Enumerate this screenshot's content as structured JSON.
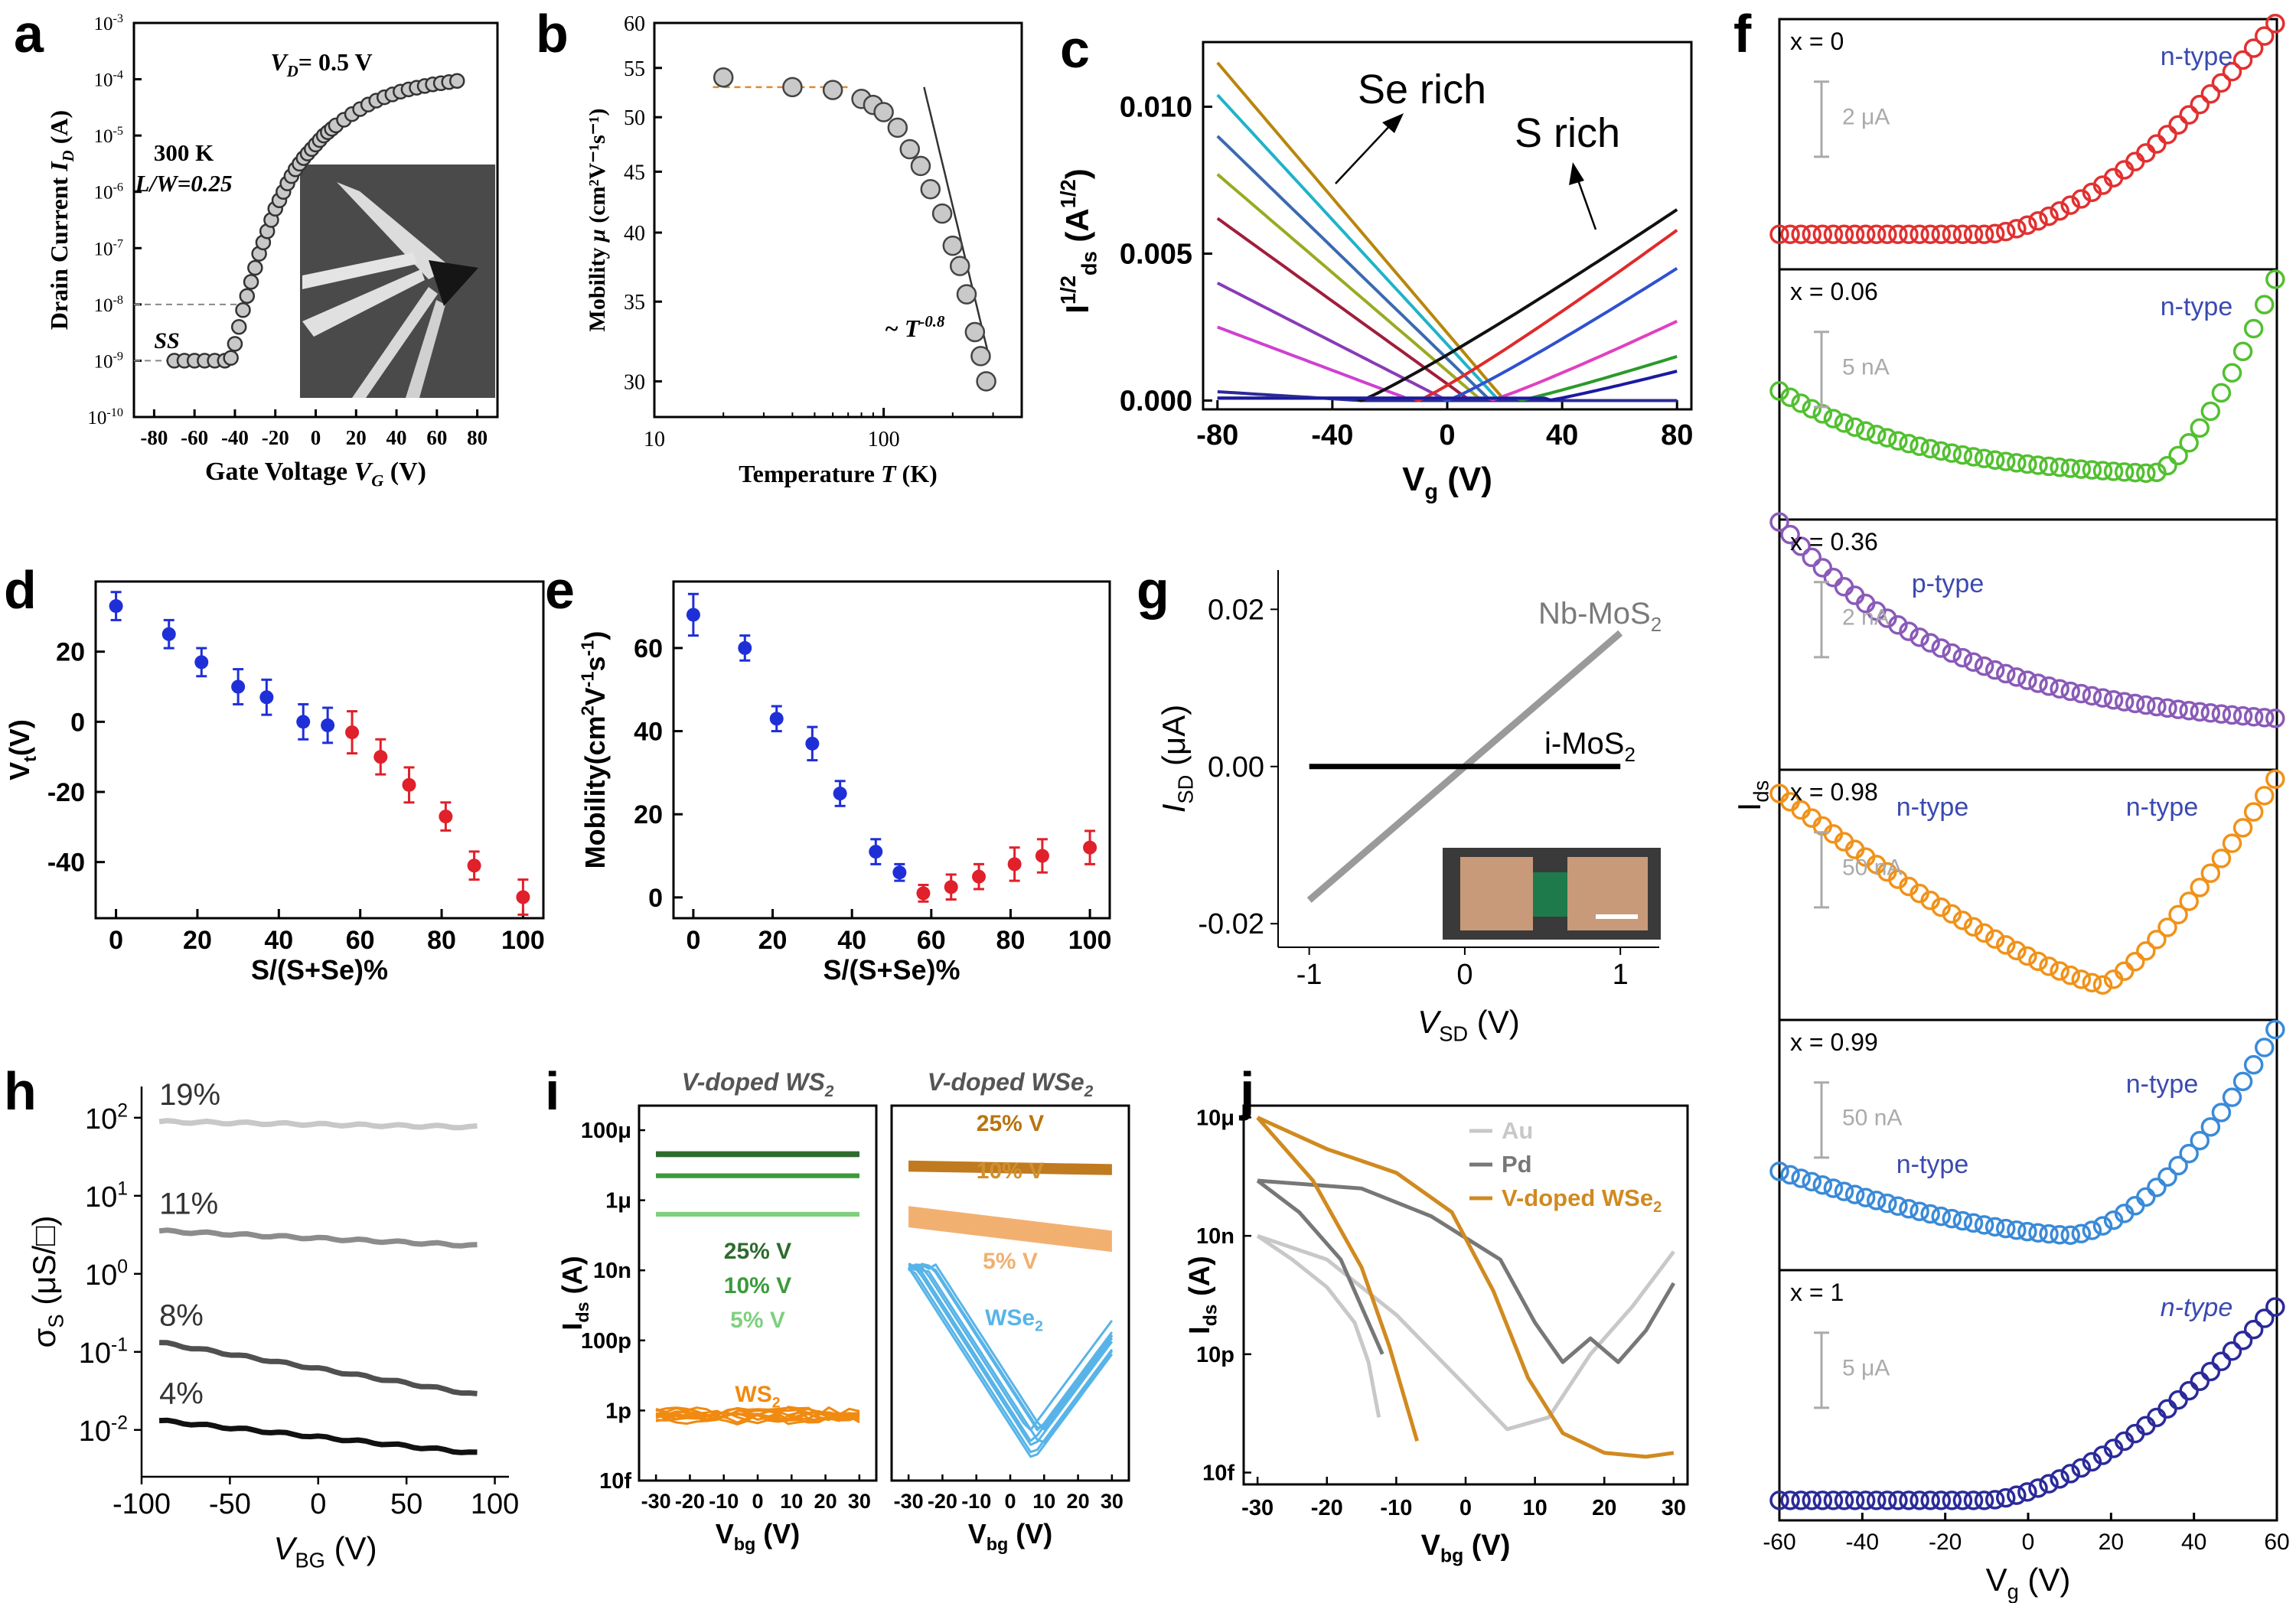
{
  "panel_letters": {
    "a": "a",
    "b": "b",
    "c": "c",
    "d": "d",
    "e": "e",
    "f": "f",
    "g": "g",
    "h": "h",
    "i": "i",
    "j": "j"
  },
  "colors": {
    "blue": "#1f2fd8",
    "red": "#e0202a",
    "gray": "#8a8a8a",
    "dark": "#111111",
    "orange": "#e58a1f",
    "green": "#2e8b3a",
    "lightblue": "#58b4e8"
  },
  "chart_data": [
    {
      "id": "a",
      "type": "scatter",
      "log_y": true,
      "xlabel_pre": "Gate Voltage ",
      "xlabel_var": "V",
      "xlabel_sub": "G",
      "xlabel_post": " (V)",
      "ylabel_pre": "Drain Current ",
      "ylabel_var": "I",
      "ylabel_sub": "D",
      "ylabel_post": " (A)",
      "xlim": [
        -90,
        90
      ],
      "ylim_exp": [
        -10,
        -3
      ],
      "x_ticks": [
        "-80",
        "-60",
        "-40",
        "-20",
        "0",
        "20",
        "40",
        "60",
        "80"
      ],
      "y_ticks_exp": [
        "-10",
        "-9",
        "-8",
        "-7",
        "-6",
        "-5",
        "-4",
        "-3"
      ],
      "annotations": {
        "vd_pre": "V",
        "vd_sub": "D",
        "vd_post": "= 0.5 V",
        "temp": "300 K",
        "lw": "L/W=0.25",
        "ss": "SS"
      },
      "x": [
        -70,
        -65,
        -60,
        -55,
        -50,
        -45,
        -42,
        -40,
        -38,
        -36,
        -34,
        -32,
        -30,
        -28,
        -26,
        -24,
        -22,
        -20,
        -18,
        -16,
        -14,
        -12,
        -10,
        -8,
        -6,
        -4,
        -2,
        0,
        2,
        4,
        6,
        8,
        10,
        14,
        18,
        22,
        26,
        30,
        34,
        38,
        42,
        46,
        50,
        54,
        58,
        62,
        66,
        70
      ],
      "y_log": [
        -9,
        -9,
        -9,
        -9,
        -9,
        -9,
        -8.95,
        -8.7,
        -8.4,
        -8.1,
        -7.85,
        -7.6,
        -7.35,
        -7.1,
        -6.9,
        -6.7,
        -6.5,
        -6.3,
        -6.15,
        -6.0,
        -5.85,
        -5.72,
        -5.6,
        -5.5,
        -5.4,
        -5.32,
        -5.24,
        -5.16,
        -5.08,
        -5.0,
        -4.94,
        -4.88,
        -4.82,
        -4.72,
        -4.62,
        -4.53,
        -4.45,
        -4.38,
        -4.32,
        -4.27,
        -4.22,
        -4.18,
        -4.15,
        -4.12,
        -4.09,
        -4.07,
        -4.05,
        -4.03
      ]
    },
    {
      "id": "b",
      "type": "scatter",
      "log_x": true,
      "log_y": true,
      "xlabel_pre": "Temperature ",
      "xlabel_var": "T",
      "xlabel_post": " (K)",
      "ylabel_pre": "Mobility ",
      "ylabel_var": "μ",
      "ylabel_post": " (cm²V⁻¹s⁻¹)",
      "xlim": [
        10,
        400
      ],
      "ylim": [
        28,
        60
      ],
      "x_ticks": [
        "10",
        "100"
      ],
      "y_ticks": [
        "30",
        "35",
        "40",
        "45",
        "50",
        "55",
        "60"
      ],
      "annotation_pre": "~ T",
      "annotation_exp": "-0.8",
      "x": [
        20,
        40,
        60,
        80,
        90,
        100,
        115,
        130,
        145,
        160,
        180,
        200,
        215,
        230,
        250,
        265,
        280
      ],
      "y": [
        54,
        53,
        52.7,
        51.8,
        51.2,
        50.5,
        49,
        47,
        45.5,
        43.5,
        41.5,
        39,
        37.5,
        35.5,
        33,
        31.5,
        30
      ]
    },
    {
      "id": "c",
      "type": "line",
      "xlabel_var": "V",
      "xlabel_sub": "g",
      "xlabel_post": " (V)",
      "ylabel_var": "I",
      "ylabel_sup": "1/2",
      "ylabel_sub": "ds",
      "ylabel_post": " (A",
      "ylabel_post_sup": "1/2",
      "ylabel_close": ")",
      "xlim": [
        -85,
        85
      ],
      "ylim": [
        -0.0003,
        0.0122
      ],
      "x_ticks": [
        "-80",
        "-40",
        "0",
        "40",
        "80"
      ],
      "y_ticks": [
        "0.000",
        "0.005",
        "0.010"
      ],
      "annotations": {
        "se_rich": "Se rich",
        "s_rich": "S rich"
      },
      "se_series": [
        {
          "color": "#b8860b",
          "vmax": 0.0115,
          "zero_at": 20
        },
        {
          "color": "#1fb3c8",
          "vmax": 0.0104,
          "zero_at": 18
        },
        {
          "color": "#3a6ab0",
          "vmax": 0.009,
          "zero_at": 15
        },
        {
          "color": "#9aaa22",
          "vmax": 0.0077,
          "zero_at": 12
        },
        {
          "color": "#a01e3c",
          "vmax": 0.0062,
          "zero_at": 8
        },
        {
          "color": "#8a3ab8",
          "vmax": 0.004,
          "zero_at": 0
        },
        {
          "color": "#d040d0",
          "vmax": 0.0025,
          "zero_at": -12
        },
        {
          "color": "#2a2a9a",
          "vmax": 0.0003,
          "zero_at": -30
        }
      ],
      "s_series": [
        {
          "color": "#111111",
          "vmax": 0.0065,
          "start": -30
        },
        {
          "color": "#e02a2a",
          "vmax": 0.0058,
          "start": -10
        },
        {
          "color": "#3050d0",
          "vmax": 0.0045,
          "start": 0
        },
        {
          "color": "#e040c0",
          "vmax": 0.0027,
          "start": 15
        },
        {
          "color": "#2a9a2a",
          "vmax": 0.0015,
          "start": 25
        },
        {
          "color": "#1a1aa0",
          "vmax": 0.001,
          "start": 35
        }
      ]
    },
    {
      "id": "d",
      "type": "scatter",
      "xlabel": "S/(S+Se)%",
      "ylabel_var": "V",
      "ylabel_sub": "t",
      "ylabel_post": "(V)",
      "xlim": [
        -5,
        105
      ],
      "ylim": [
        -56,
        40
      ],
      "x_ticks": [
        "0",
        "20",
        "40",
        "60",
        "80",
        "100"
      ],
      "y_ticks": [
        "-40",
        "-20",
        "0",
        "20"
      ],
      "x": [
        0,
        13,
        21,
        30,
        37,
        46,
        52,
        58,
        65,
        72,
        81,
        88,
        100
      ],
      "y": [
        33,
        25,
        17,
        10,
        7,
        0,
        -1,
        -3,
        -10,
        -18,
        -27,
        -41,
        -50
      ],
      "err": [
        4,
        4,
        4,
        5,
        5,
        5,
        5,
        6,
        5,
        5,
        4,
        4,
        5
      ],
      "point_colors": [
        "#1f2fd8",
        "#1f2fd8",
        "#1f2fd8",
        "#1f2fd8",
        "#1f2fd8",
        "#1f2fd8",
        "#1f2fd8",
        "#e0202a",
        "#e0202a",
        "#e0202a",
        "#e0202a",
        "#e0202a",
        "#e0202a"
      ]
    },
    {
      "id": "e",
      "type": "scatter",
      "xlabel": "S/(S+Se)%",
      "ylabel_pre": "Mobility(cm",
      "ylabel_sup1": "2",
      "ylabel_mid": "V",
      "ylabel_sup2": "-1",
      "ylabel_mid2": "s",
      "ylabel_sup3": "-1",
      "ylabel_post": ")",
      "xlim": [
        -5,
        105
      ],
      "ylim": [
        -5,
        76
      ],
      "x_ticks": [
        "0",
        "20",
        "40",
        "60",
        "80",
        "100"
      ],
      "y_ticks": [
        "0",
        "20",
        "40",
        "60"
      ],
      "x": [
        0,
        13,
        21,
        30,
        37,
        46,
        52,
        58,
        65,
        72,
        81,
        88,
        100
      ],
      "y": [
        68,
        60,
        43,
        37,
        25,
        11,
        6,
        1,
        2.5,
        5,
        8,
        10,
        12
      ],
      "err": [
        5,
        3,
        3,
        4,
        3,
        3,
        2,
        2,
        3,
        3,
        4,
        4,
        4
      ],
      "point_colors": [
        "#1f2fd8",
        "#1f2fd8",
        "#1f2fd8",
        "#1f2fd8",
        "#1f2fd8",
        "#1f2fd8",
        "#1f2fd8",
        "#e0202a",
        "#e0202a",
        "#e0202a",
        "#e0202a",
        "#e0202a",
        "#e0202a"
      ]
    },
    {
      "id": "f",
      "type": "scatter",
      "stacked": true,
      "xlabel_var": "V",
      "xlabel_sub": "g",
      "xlabel_post": " (V)",
      "ylabel_var": "I",
      "ylabel_sub": "ds",
      "xlim": [
        -60,
        60
      ],
      "x_ticks": [
        "-60",
        "-40",
        "-20",
        "0",
        "20",
        "40",
        "60"
      ],
      "panels": [
        {
          "label": "x = 0",
          "type_labels": [
            "n-type"
          ],
          "scale": "2 μA",
          "color": "#e23030",
          "shape": "nlate",
          "amp": 0.85,
          "base": 0.14,
          "xon": -10,
          "italic": false
        },
        {
          "label": "x = 0.06",
          "type_labels": [
            "n-type"
          ],
          "scale": "5 nA",
          "color": "#52c030",
          "shape": "vshallow",
          "amp": 0.85,
          "base": 0.14,
          "xon": 0,
          "italic": false
        },
        {
          "label": "x = 0.36",
          "type_labels": [
            "p-type"
          ],
          "scale": "2 nA",
          "color": "#8a5ab8",
          "shape": "ptype",
          "amp": 0.85,
          "base": 0.14,
          "xon": 0,
          "italic": false
        },
        {
          "label": "x = 0.98",
          "type_labels": [
            "n-type",
            "n-type"
          ],
          "scale": "50 nA",
          "color": "#f0921a",
          "shape": "vdeep",
          "amp": 0.85,
          "base": 0.14,
          "xon": 0,
          "italic": false
        },
        {
          "label": "x = 0.99",
          "type_labels": [
            "n-type",
            "n-type"
          ],
          "scale": "50 nA",
          "color": "#3a8ad8",
          "shape": "vmid",
          "amp": 0.85,
          "base": 0.14,
          "xon": 0,
          "italic": false
        },
        {
          "label": "x = 1",
          "type_labels": [
            "n-type"
          ],
          "scale": "5 μA",
          "color": "#2a2a9a",
          "shape": "nlate",
          "amp": 0.78,
          "base": 0.08,
          "xon": -10,
          "italic": true
        }
      ]
    },
    {
      "id": "g",
      "type": "line",
      "xlabel_var": "V",
      "xlabel_sub": "SD",
      "xlabel_post": " (V)",
      "ylabel_var": "I",
      "ylabel_sub": "SD",
      "ylabel_post": " (μA)",
      "xlim": [
        -1.2,
        1.25
      ],
      "ylim": [
        -0.023,
        0.025
      ],
      "x_ticks": [
        "-1",
        "0",
        "1"
      ],
      "y_ticks": [
        "-0.02",
        "0.00",
        "0.02"
      ],
      "series": [
        {
          "name_pre": "Nb-MoS",
          "name_sub": "2",
          "color": "#9a9a9a",
          "x": [
            -1,
            1
          ],
          "y": [
            -0.017,
            0.017
          ]
        },
        {
          "name_pre": "i-MoS",
          "name_sub": "2",
          "color": "#000000",
          "x": [
            -1,
            1
          ],
          "y": [
            0,
            0
          ]
        }
      ]
    },
    {
      "id": "h",
      "type": "line",
      "log_y": true,
      "xlabel_var": "V",
      "xlabel_sub": "BG",
      "xlabel_post": " (V)",
      "ylabel_var": "σ",
      "ylabel_sub": "S",
      "ylabel_post": " (μS/□)",
      "xlim": [
        -100,
        108
      ],
      "ylim_exp": [
        -2.6,
        2.4
      ],
      "x_ticks": [
        "-100",
        "-50",
        "0",
        "50",
        "100"
      ],
      "y_ticks_exp": [
        "-2",
        "-1",
        "0",
        "1",
        "2"
      ],
      "series": [
        {
          "name": "19%",
          "color": "#c8c8c8",
          "x": [
            -90,
            90
          ],
          "y_log": [
            1.95,
            1.88
          ]
        },
        {
          "name": "11%",
          "color": "#8c8c8c",
          "x": [
            -90,
            90
          ],
          "y_log": [
            0.55,
            0.36
          ]
        },
        {
          "name": "8%",
          "color": "#505050",
          "x": [
            -90,
            90
          ],
          "y_log": [
            -0.88,
            -1.55
          ]
        },
        {
          "name": "4%",
          "color": "#111111",
          "x": [
            -90,
            90
          ],
          "y_log": [
            -1.88,
            -2.3
          ]
        }
      ]
    },
    {
      "id": "i",
      "type": "line",
      "log_y": true,
      "xlabel_var": "V",
      "xlabel_sub": "bg",
      "xlabel_post": " (V)",
      "ylabel_var": "I",
      "ylabel_sub": "ds",
      "ylabel_post": " (A)",
      "y_ticks": [
        "10f",
        "1p",
        "100p",
        "10n",
        "1μ",
        "100μ"
      ],
      "subpanels": [
        {
          "title_pre": "V-doped WS",
          "title_sub": "2",
          "x_ticks": [
            "-30",
            "-20",
            "-10",
            "0",
            "10",
            "20",
            "30"
          ],
          "labels": [
            {
              "text": "25% V",
              "color": "#2e6b2e"
            },
            {
              "text": "10% V",
              "color": "#3c9a3c"
            },
            {
              "text": "5% V",
              "color": "#7ed07e"
            }
          ],
          "ws_label_pre": "WS",
          "ws_label_sub": "2"
        },
        {
          "title_pre": "V-doped WSe",
          "title_sub": "2",
          "x_ticks": [
            "-30",
            "-20",
            "-10",
            "0",
            "10",
            "20",
            "30"
          ],
          "labels": [
            {
              "text": "25% V",
              "color": "#b87410"
            },
            {
              "text": "10% V",
              "color": "#d09030"
            },
            {
              "text": "5% V",
              "color": "#f0b070"
            }
          ],
          "wse_label_pre": "WSe",
          "wse_label_sub": "2"
        }
      ]
    },
    {
      "id": "j",
      "type": "line",
      "log_y": true,
      "xlabel_var": "V",
      "xlabel_sub": "bg",
      "xlabel_post": " (V)",
      "ylabel_var": "I",
      "ylabel_sub": "ds",
      "ylabel_post": " (A)",
      "xlim": [
        -32,
        32
      ],
      "ylim_exp": [
        -14.3,
        -4.7
      ],
      "x_ticks": [
        "-30",
        "-20",
        "-10",
        "0",
        "10",
        "20",
        "30"
      ],
      "y_ticks": [
        "10f",
        "10p",
        "10n",
        "10μ"
      ],
      "legend": [
        {
          "name": "Au",
          "color": "#c8c8c8"
        },
        {
          "name": "Pd",
          "color": "#777777"
        },
        {
          "name_pre": "V-doped WSe",
          "name_sub": "2",
          "color": "#d08a20"
        }
      ]
    }
  ]
}
